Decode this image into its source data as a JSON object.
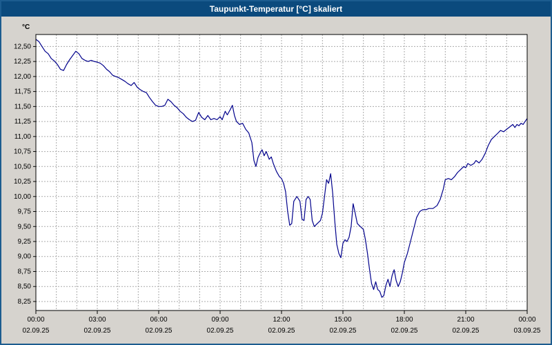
{
  "window": {
    "title": "Taupunkt-Temperatur [°C] skaliert",
    "title_bar_color": "#0b4a7d",
    "frame_color": "#1c5c8f",
    "body_color": "#d6d3ce"
  },
  "chart_data": {
    "type": "line",
    "title": "Taupunkt-Temperatur [°C] skaliert",
    "ylabel": "°C",
    "xlabel": "",
    "legend": [],
    "grid": true,
    "line_color": "#00008b",
    "grid_color": "#aaaaaa",
    "plot_bg": "#ffffff",
    "xlim": [
      0,
      24
    ],
    "ylim": [
      8.1,
      12.7
    ],
    "y_ticks": [
      {
        "value": 12.5,
        "label": "12,50"
      },
      {
        "value": 12.25,
        "label": "12,25"
      },
      {
        "value": 12.0,
        "label": "12,00"
      },
      {
        "value": 11.75,
        "label": "11,75"
      },
      {
        "value": 11.5,
        "label": "11,50"
      },
      {
        "value": 11.25,
        "label": "11,25"
      },
      {
        "value": 11.0,
        "label": "11,00"
      },
      {
        "value": 10.75,
        "label": "10,75"
      },
      {
        "value": 10.5,
        "label": "10,50"
      },
      {
        "value": 10.25,
        "label": "10,25"
      },
      {
        "value": 10.0,
        "label": "10,00"
      },
      {
        "value": 9.75,
        "label": "9,75"
      },
      {
        "value": 9.5,
        "label": "9,50"
      },
      {
        "value": 9.25,
        "label": "9,25"
      },
      {
        "value": 9.0,
        "label": "9,00"
      },
      {
        "value": 8.75,
        "label": "8,75"
      },
      {
        "value": 8.5,
        "label": "8,50"
      },
      {
        "value": 8.25,
        "label": "8,25"
      }
    ],
    "x_ticks": [
      {
        "hour": 0,
        "time": "00:00",
        "date": "02.09.25"
      },
      {
        "hour": 3,
        "time": "03:00",
        "date": "02.09.25"
      },
      {
        "hour": 6,
        "time": "06:00",
        "date": "02.09.25"
      },
      {
        "hour": 9,
        "time": "09:00",
        "date": "02.09.25"
      },
      {
        "hour": 12,
        "time": "12:00",
        "date": "02.09.25"
      },
      {
        "hour": 15,
        "time": "15:00",
        "date": "02.09.25"
      },
      {
        "hour": 18,
        "time": "18:00",
        "date": "02.09.25"
      },
      {
        "hour": 21,
        "time": "21:00",
        "date": "02.09.25"
      },
      {
        "hour": 24,
        "time": "00:00",
        "date": "03.09.25"
      }
    ],
    "minor_x_grid_step_hours": 1,
    "points": [
      [
        0,
        12.62
      ],
      [
        0.15,
        12.58
      ],
      [
        0.3,
        12.5
      ],
      [
        0.45,
        12.42
      ],
      [
        0.6,
        12.38
      ],
      [
        0.75,
        12.3
      ],
      [
        0.9,
        12.26
      ],
      [
        1.05,
        12.2
      ],
      [
        1.2,
        12.12
      ],
      [
        1.35,
        12.1
      ],
      [
        1.5,
        12.2
      ],
      [
        1.65,
        12.28
      ],
      [
        1.8,
        12.35
      ],
      [
        1.95,
        12.42
      ],
      [
        2.1,
        12.38
      ],
      [
        2.25,
        12.3
      ],
      [
        2.4,
        12.27
      ],
      [
        2.55,
        12.25
      ],
      [
        2.7,
        12.27
      ],
      [
        2.85,
        12.25
      ],
      [
        3.0,
        12.24
      ],
      [
        3.15,
        12.22
      ],
      [
        3.3,
        12.18
      ],
      [
        3.45,
        12.12
      ],
      [
        3.6,
        12.08
      ],
      [
        3.75,
        12.02
      ],
      [
        3.9,
        12.0
      ],
      [
        4.05,
        11.98
      ],
      [
        4.2,
        11.95
      ],
      [
        4.35,
        11.92
      ],
      [
        4.5,
        11.88
      ],
      [
        4.65,
        11.85
      ],
      [
        4.8,
        11.9
      ],
      [
        4.95,
        11.82
      ],
      [
        5.1,
        11.78
      ],
      [
        5.25,
        11.75
      ],
      [
        5.4,
        11.73
      ],
      [
        5.55,
        11.65
      ],
      [
        5.7,
        11.58
      ],
      [
        5.85,
        11.52
      ],
      [
        6.0,
        11.5
      ],
      [
        6.15,
        11.5
      ],
      [
        6.3,
        11.52
      ],
      [
        6.45,
        11.62
      ],
      [
        6.6,
        11.58
      ],
      [
        6.75,
        11.52
      ],
      [
        6.9,
        11.48
      ],
      [
        7.05,
        11.42
      ],
      [
        7.2,
        11.38
      ],
      [
        7.35,
        11.32
      ],
      [
        7.5,
        11.28
      ],
      [
        7.65,
        11.25
      ],
      [
        7.8,
        11.27
      ],
      [
        7.95,
        11.4
      ],
      [
        8.1,
        11.32
      ],
      [
        8.25,
        11.28
      ],
      [
        8.4,
        11.35
      ],
      [
        8.55,
        11.28
      ],
      [
        8.7,
        11.3
      ],
      [
        8.85,
        11.28
      ],
      [
        9.0,
        11.33
      ],
      [
        9.1,
        11.28
      ],
      [
        9.25,
        11.42
      ],
      [
        9.35,
        11.36
      ],
      [
        9.5,
        11.45
      ],
      [
        9.6,
        11.52
      ],
      [
        9.7,
        11.35
      ],
      [
        9.8,
        11.25
      ],
      [
        9.95,
        11.2
      ],
      [
        10.1,
        11.22
      ],
      [
        10.25,
        11.12
      ],
      [
        10.4,
        11.06
      ],
      [
        10.55,
        10.9
      ],
      [
        10.65,
        10.6
      ],
      [
        10.75,
        10.5
      ],
      [
        10.85,
        10.65
      ],
      [
        10.95,
        10.72
      ],
      [
        11.05,
        10.78
      ],
      [
        11.15,
        10.68
      ],
      [
        11.25,
        10.75
      ],
      [
        11.4,
        10.62
      ],
      [
        11.5,
        10.66
      ],
      [
        11.6,
        10.55
      ],
      [
        11.75,
        10.42
      ],
      [
        11.9,
        10.33
      ],
      [
        12.0,
        10.3
      ],
      [
        12.1,
        10.22
      ],
      [
        12.2,
        10.08
      ],
      [
        12.3,
        9.75
      ],
      [
        12.4,
        9.52
      ],
      [
        12.5,
        9.55
      ],
      [
        12.6,
        9.92
      ],
      [
        12.75,
        10.0
      ],
      [
        12.9,
        9.92
      ],
      [
        13.0,
        9.62
      ],
      [
        13.1,
        9.6
      ],
      [
        13.2,
        9.95
      ],
      [
        13.3,
        10.0
      ],
      [
        13.4,
        9.95
      ],
      [
        13.5,
        9.6
      ],
      [
        13.6,
        9.5
      ],
      [
        13.75,
        9.55
      ],
      [
        13.9,
        9.6
      ],
      [
        14.0,
        9.72
      ],
      [
        14.1,
        10.0
      ],
      [
        14.2,
        10.28
      ],
      [
        14.3,
        10.22
      ],
      [
        14.4,
        10.38
      ],
      [
        14.5,
        10.05
      ],
      [
        14.6,
        9.6
      ],
      [
        14.7,
        9.2
      ],
      [
        14.8,
        9.05
      ],
      [
        14.9,
        8.98
      ],
      [
        15.0,
        9.22
      ],
      [
        15.1,
        9.28
      ],
      [
        15.2,
        9.25
      ],
      [
        15.3,
        9.32
      ],
      [
        15.4,
        9.5
      ],
      [
        15.5,
        9.88
      ],
      [
        15.6,
        9.72
      ],
      [
        15.7,
        9.55
      ],
      [
        15.85,
        9.5
      ],
      [
        16.0,
        9.45
      ],
      [
        16.1,
        9.28
      ],
      [
        16.2,
        9.05
      ],
      [
        16.3,
        8.78
      ],
      [
        16.4,
        8.55
      ],
      [
        16.5,
        8.45
      ],
      [
        16.6,
        8.58
      ],
      [
        16.7,
        8.45
      ],
      [
        16.8,
        8.42
      ],
      [
        16.9,
        8.32
      ],
      [
        17.0,
        8.35
      ],
      [
        17.1,
        8.52
      ],
      [
        17.2,
        8.62
      ],
      [
        17.3,
        8.5
      ],
      [
        17.4,
        8.68
      ],
      [
        17.5,
        8.78
      ],
      [
        17.6,
        8.6
      ],
      [
        17.7,
        8.5
      ],
      [
        17.8,
        8.58
      ],
      [
        17.9,
        8.72
      ],
      [
        18.0,
        8.9
      ],
      [
        18.15,
        9.05
      ],
      [
        18.3,
        9.25
      ],
      [
        18.45,
        9.45
      ],
      [
        18.6,
        9.65
      ],
      [
        18.75,
        9.75
      ],
      [
        18.9,
        9.78
      ],
      [
        19.05,
        9.78
      ],
      [
        19.2,
        9.8
      ],
      [
        19.4,
        9.8
      ],
      [
        19.6,
        9.85
      ],
      [
        19.75,
        9.95
      ],
      [
        19.9,
        10.12
      ],
      [
        20.0,
        10.28
      ],
      [
        20.15,
        10.3
      ],
      [
        20.3,
        10.28
      ],
      [
        20.45,
        10.33
      ],
      [
        20.6,
        10.4
      ],
      [
        20.75,
        10.45
      ],
      [
        20.9,
        10.5
      ],
      [
        21.0,
        10.48
      ],
      [
        21.1,
        10.55
      ],
      [
        21.25,
        10.52
      ],
      [
        21.4,
        10.55
      ],
      [
        21.5,
        10.6
      ],
      [
        21.65,
        10.56
      ],
      [
        21.8,
        10.62
      ],
      [
        21.95,
        10.72
      ],
      [
        22.1,
        10.85
      ],
      [
        22.25,
        10.95
      ],
      [
        22.4,
        11.0
      ],
      [
        22.55,
        11.05
      ],
      [
        22.7,
        11.1
      ],
      [
        22.85,
        11.08
      ],
      [
        23.0,
        11.12
      ],
      [
        23.15,
        11.16
      ],
      [
        23.3,
        11.2
      ],
      [
        23.4,
        11.15
      ],
      [
        23.5,
        11.2
      ],
      [
        23.6,
        11.18
      ],
      [
        23.7,
        11.22
      ],
      [
        23.8,
        11.2
      ],
      [
        23.9,
        11.25
      ],
      [
        24.0,
        11.3
      ]
    ]
  }
}
